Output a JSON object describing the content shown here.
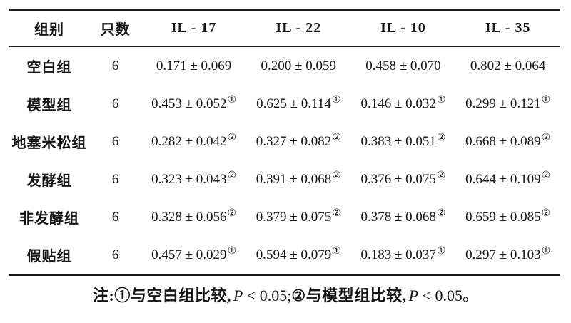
{
  "colors": {
    "background": "#ffffff",
    "text": "#151515",
    "rule": "#1a1a1a"
  },
  "table": {
    "columns": [
      "组别",
      "只数",
      "IL - 17",
      "IL - 22",
      "IL - 10",
      "IL - 35"
    ],
    "rows": [
      {
        "group": "空白组",
        "n": "6",
        "values": [
          {
            "value": "0.171 ± 0.069",
            "mark": ""
          },
          {
            "value": "0.200 ± 0.059",
            "mark": ""
          },
          {
            "value": "0.458 ± 0.070",
            "mark": ""
          },
          {
            "value": "0.802 ± 0.064",
            "mark": ""
          }
        ]
      },
      {
        "group": "模型组",
        "n": "6",
        "values": [
          {
            "value": "0.453 ± 0.052",
            "mark": "①"
          },
          {
            "value": "0.625 ± 0.114",
            "mark": "①"
          },
          {
            "value": "0.146 ± 0.032",
            "mark": "①"
          },
          {
            "value": "0.299 ± 0.121",
            "mark": "①"
          }
        ]
      },
      {
        "group": "地塞米松组",
        "n": "6",
        "values": [
          {
            "value": "0.282 ± 0.042",
            "mark": "②"
          },
          {
            "value": "0.327 ± 0.082",
            "mark": "②"
          },
          {
            "value": "0.383 ± 0.051",
            "mark": "②"
          },
          {
            "value": "0.668 ± 0.089",
            "mark": "②"
          }
        ]
      },
      {
        "group": "发酵组",
        "n": "6",
        "values": [
          {
            "value": "0.323 ± 0.043",
            "mark": "②"
          },
          {
            "value": "0.391 ± 0.068",
            "mark": "②"
          },
          {
            "value": "0.376 ± 0.075",
            "mark": "②"
          },
          {
            "value": "0.644 ± 0.109",
            "mark": "②"
          }
        ]
      },
      {
        "group": "非发酵组",
        "n": "6",
        "values": [
          {
            "value": "0.328 ± 0.056",
            "mark": "②"
          },
          {
            "value": "0.379 ± 0.075",
            "mark": "②"
          },
          {
            "value": "0.378 ± 0.068",
            "mark": "②"
          },
          {
            "value": "0.659 ± 0.085",
            "mark": "②"
          }
        ]
      },
      {
        "group": "假贴组",
        "n": "6",
        "values": [
          {
            "value": "0.457 ± 0.029",
            "mark": "①"
          },
          {
            "value": "0.594 ± 0.079",
            "mark": "①"
          },
          {
            "value": "0.183 ± 0.037",
            "mark": "①"
          },
          {
            "value": "0.297 ± 0.103",
            "mark": "①"
          }
        ]
      }
    ]
  },
  "footnote": {
    "parts": [
      {
        "text": "注:①与空白组比较,",
        "style": "cjk"
      },
      {
        "text": "P",
        "style": "italic"
      },
      {
        "text": " < 0.05;",
        "style": "num"
      },
      {
        "text": "②与模型组比较,",
        "style": "cjk"
      },
      {
        "text": "P",
        "style": "italic"
      },
      {
        "text": " < 0.05。",
        "style": "num"
      }
    ]
  }
}
